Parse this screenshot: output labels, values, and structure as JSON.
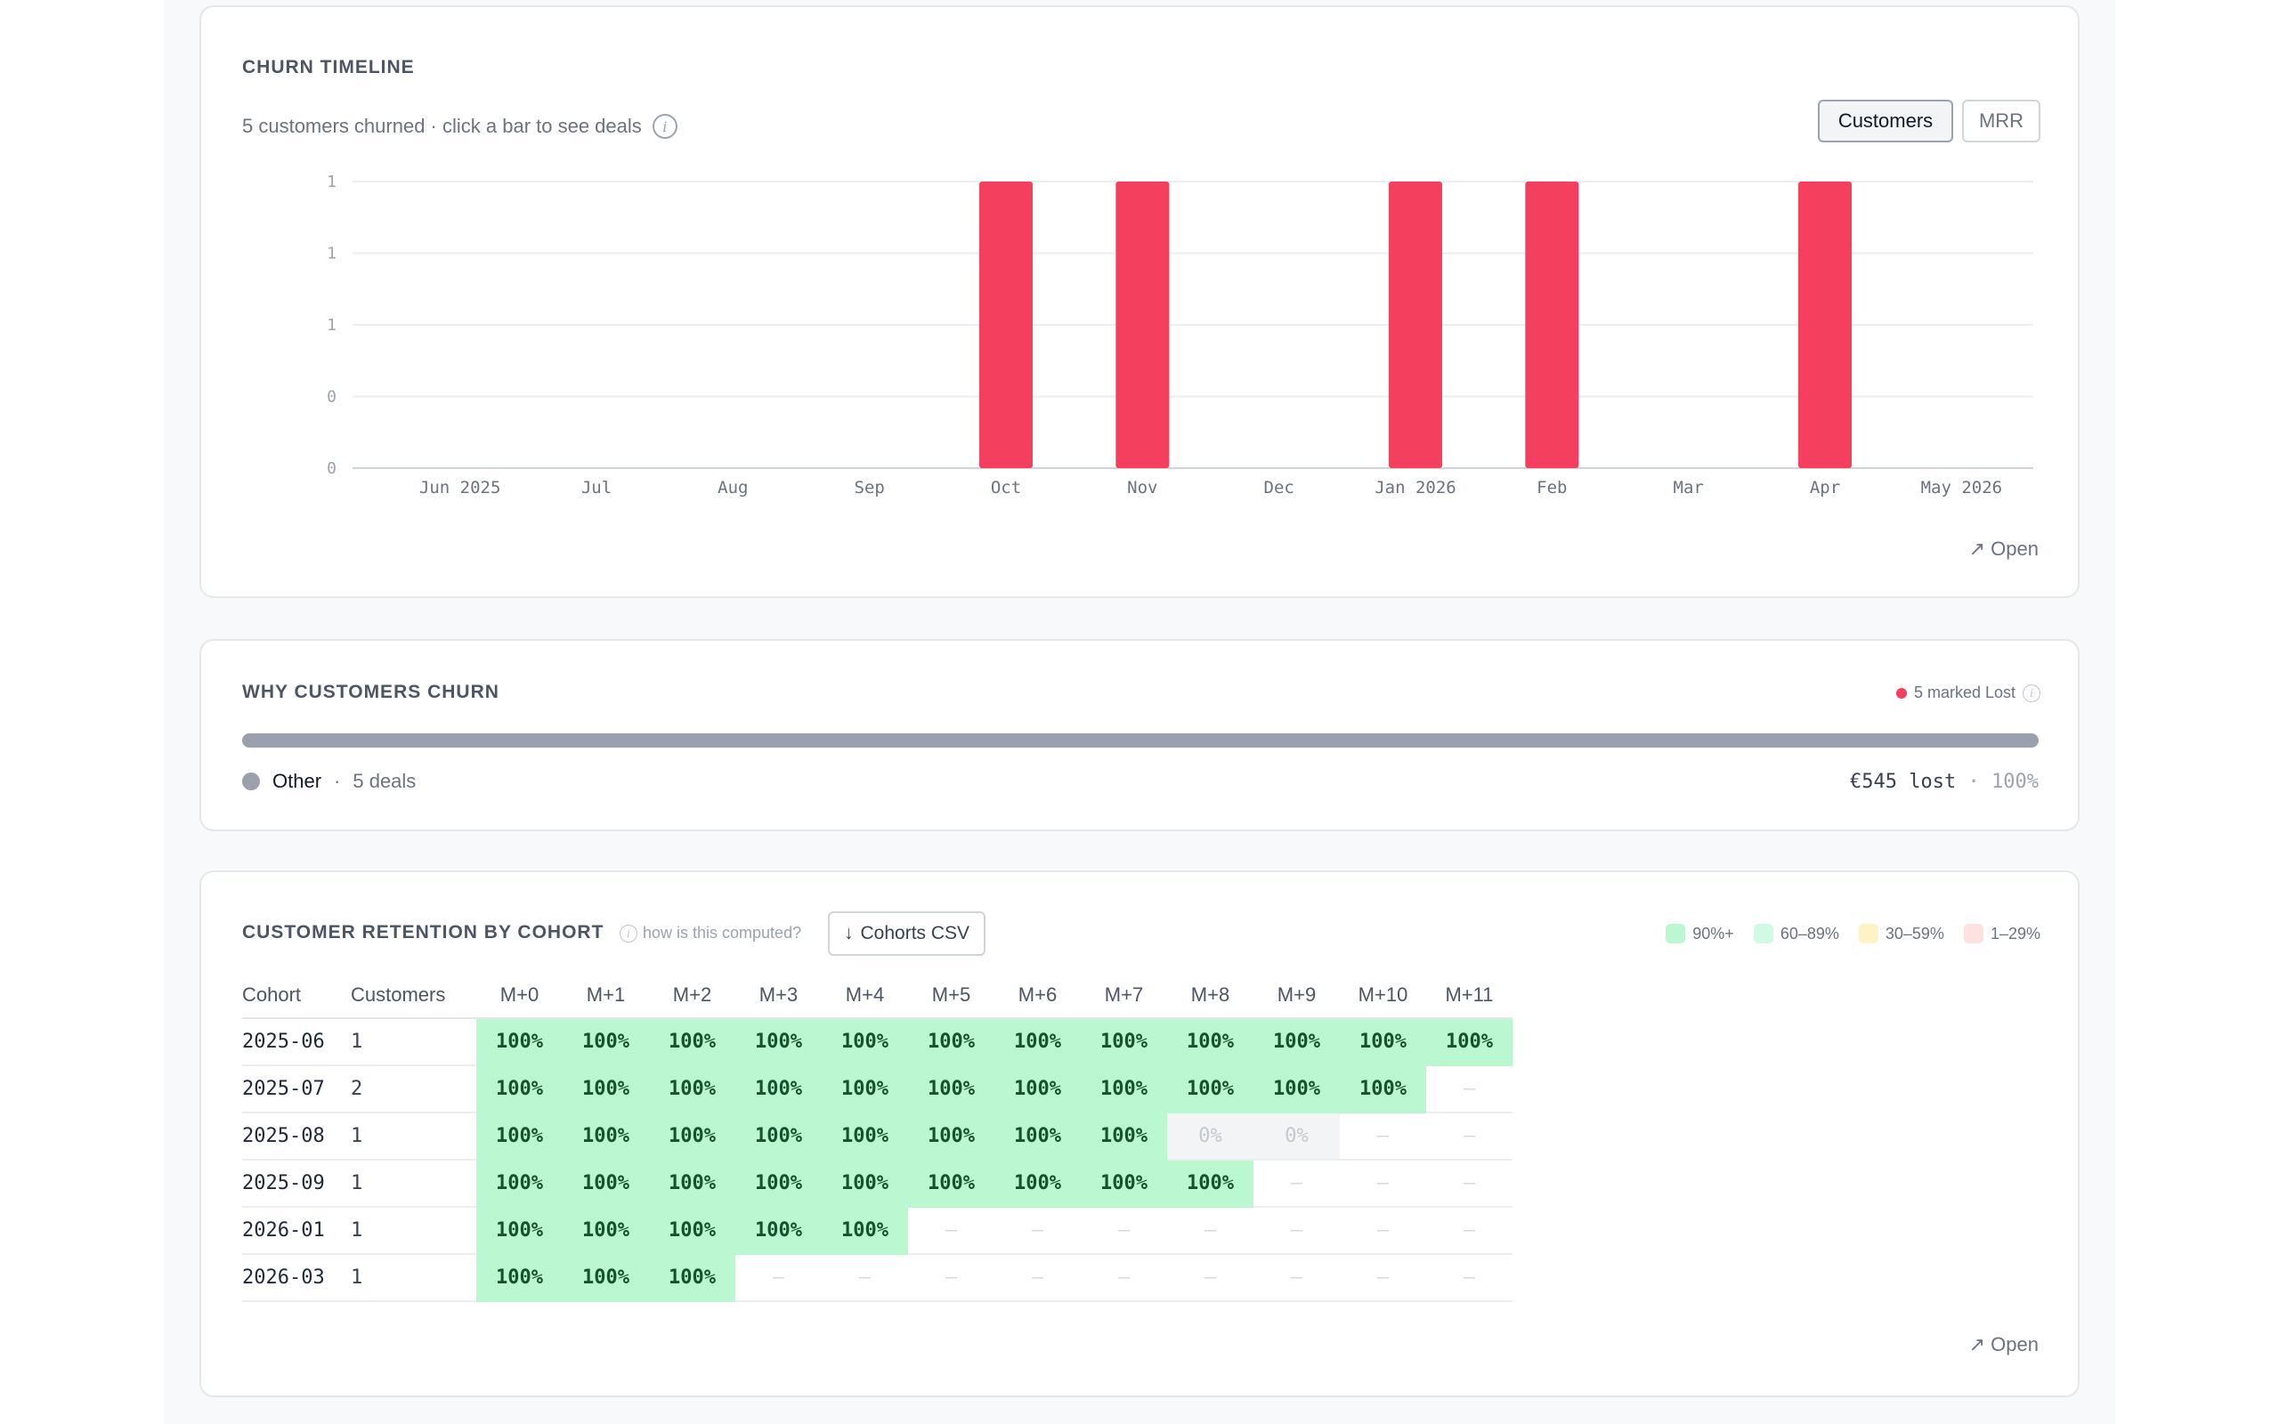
{
  "churn_timeline": {
    "title": "CHURN TIMELINE",
    "subtitle": "5 customers churned · click a bar to see deals",
    "info_glyph": "i",
    "toggles": [
      {
        "label": "Customers",
        "active": true
      },
      {
        "label": "MRR",
        "active": false
      }
    ],
    "open_label": "Open",
    "open_icon": "↗"
  },
  "chart_data": {
    "type": "bar",
    "title": "",
    "xlabel": "",
    "ylabel": "",
    "categories": [
      "Jun 2025",
      "Jul",
      "Aug",
      "Sep",
      "Oct",
      "Nov",
      "Dec",
      "Jan 2026",
      "Feb",
      "Mar",
      "Apr",
      "May 2026"
    ],
    "values": [
      0,
      0,
      0,
      0,
      1,
      1,
      0,
      1,
      1,
      0,
      1,
      0
    ],
    "ylim": [
      0,
      1
    ],
    "y_tick_labels": [
      "0",
      "0",
      "1",
      "1",
      "1"
    ],
    "grid": true,
    "bar_color": "#f43f5e"
  },
  "why_churn": {
    "title": "WHY CUSTOMERS CHURN",
    "marked_lost": "5 marked Lost",
    "reasons": [
      {
        "name": "Other",
        "deals": "5 deals",
        "lost": "€545 lost",
        "pct": "100%",
        "share": 1.0
      }
    ],
    "reason_color": "#9aa1ad",
    "dot_color": "#f43f5e"
  },
  "retention": {
    "title": "CUSTOMER RETENTION BY COHORT",
    "computed_label": "how is this computed?",
    "csv_label": "Cohorts CSV",
    "csv_icon": "↓",
    "legend": [
      {
        "label": "90%+",
        "color": "#bbf7d0"
      },
      {
        "label": "60–89%",
        "color": "#d1fae5"
      },
      {
        "label": "30–59%",
        "color": "#fef3c7"
      },
      {
        "label": "1–29%",
        "color": "#fee2e2"
      }
    ],
    "columns": [
      "Cohort",
      "Customers",
      "M+0",
      "M+1",
      "M+2",
      "M+3",
      "M+4",
      "M+5",
      "M+6",
      "M+7",
      "M+8",
      "M+9",
      "M+10",
      "M+11"
    ],
    "rows": [
      {
        "cohort": "2025-06",
        "customers": "1",
        "cells": [
          "100%",
          "100%",
          "100%",
          "100%",
          "100%",
          "100%",
          "100%",
          "100%",
          "100%",
          "100%",
          "100%",
          "100%"
        ]
      },
      {
        "cohort": "2025-07",
        "customers": "2",
        "cells": [
          "100%",
          "100%",
          "100%",
          "100%",
          "100%",
          "100%",
          "100%",
          "100%",
          "100%",
          "100%",
          "100%",
          "—"
        ]
      },
      {
        "cohort": "2025-08",
        "customers": "1",
        "cells": [
          "100%",
          "100%",
          "100%",
          "100%",
          "100%",
          "100%",
          "100%",
          "100%",
          "0%",
          "0%",
          "—",
          "—"
        ]
      },
      {
        "cohort": "2025-09",
        "customers": "1",
        "cells": [
          "100%",
          "100%",
          "100%",
          "100%",
          "100%",
          "100%",
          "100%",
          "100%",
          "100%",
          "—",
          "—",
          "—"
        ]
      },
      {
        "cohort": "2026-01",
        "customers": "1",
        "cells": [
          "100%",
          "100%",
          "100%",
          "100%",
          "100%",
          "—",
          "—",
          "—",
          "—",
          "—",
          "—",
          "—"
        ]
      },
      {
        "cohort": "2026-03",
        "customers": "1",
        "cells": [
          "100%",
          "100%",
          "100%",
          "—",
          "—",
          "—",
          "—",
          "—",
          "—",
          "—",
          "—",
          "—"
        ]
      }
    ],
    "open_label": "Open",
    "open_icon": "↗"
  }
}
